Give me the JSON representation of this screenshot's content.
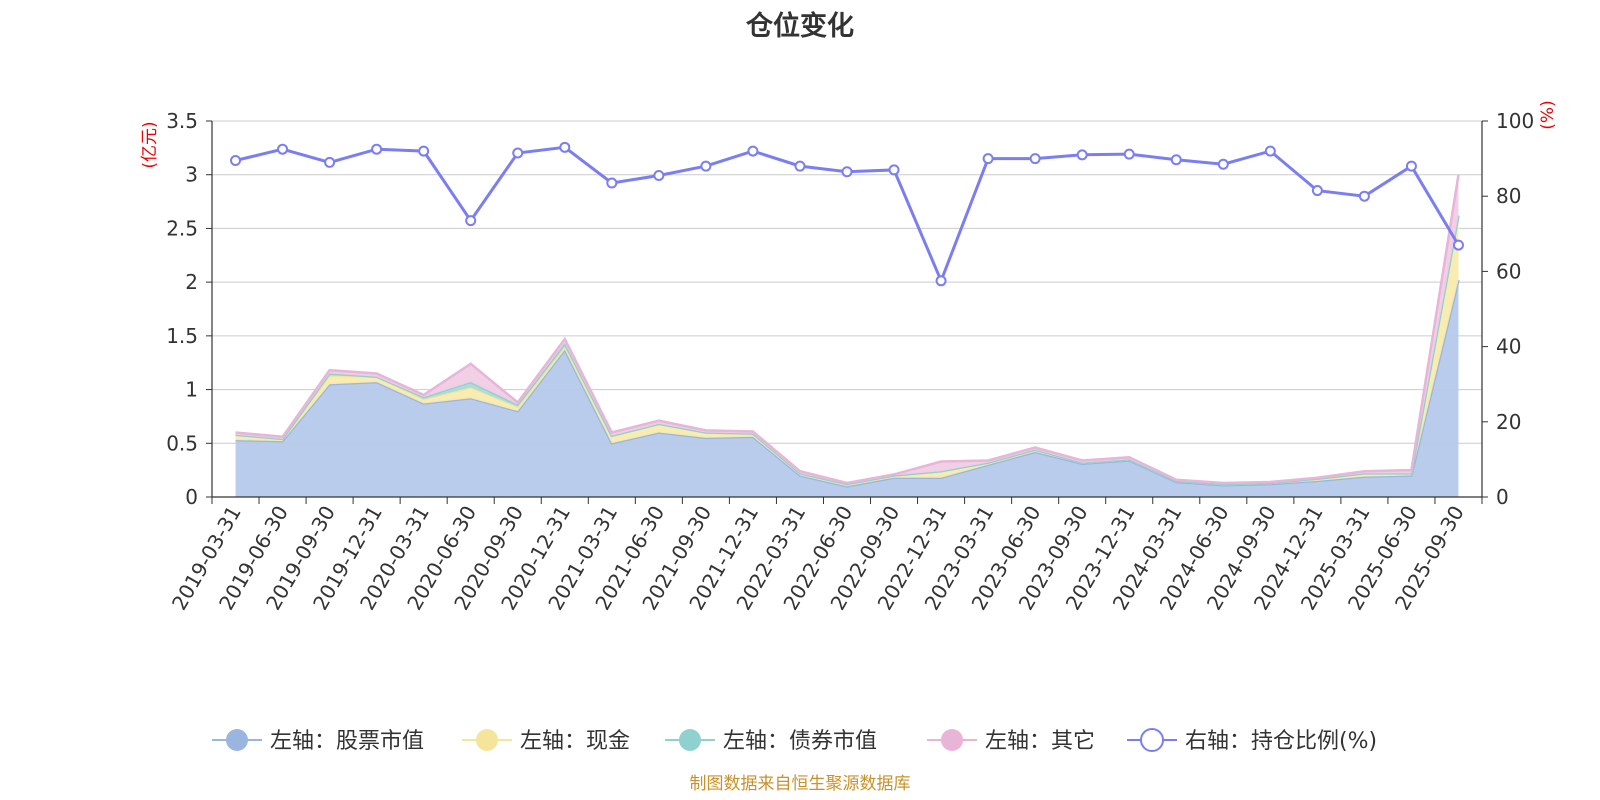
{
  "chart_data": {
    "type": "area",
    "title": "仓位变化",
    "y_left_unit": "(亿元)",
    "y_right_unit": "(%)",
    "y_left_range": [
      0,
      3.5
    ],
    "y_left_ticks": [
      "0",
      "0.5",
      "1",
      "1.5",
      "2",
      "2.5",
      "3",
      "3.5"
    ],
    "y_right_range": [
      0,
      100
    ],
    "y_right_ticks": [
      "0",
      "20",
      "40",
      "60",
      "80",
      "100"
    ],
    "grid": true,
    "legend_position": "bottom",
    "categories": [
      "2019-03-31",
      "2019-06-30",
      "2019-09-30",
      "2019-12-31",
      "2020-03-31",
      "2020-06-30",
      "2020-09-30",
      "2020-12-31",
      "2021-03-31",
      "2021-06-30",
      "2021-09-30",
      "2021-12-31",
      "2022-03-31",
      "2022-06-30",
      "2022-09-30",
      "2022-12-31",
      "2023-03-31",
      "2023-06-30",
      "2023-09-30",
      "2023-12-31",
      "2024-03-31",
      "2024-06-30",
      "2024-09-30",
      "2024-12-31",
      "2025-03-31",
      "2025-06-30",
      "2025-09-30"
    ],
    "series": [
      {
        "name": "左轴：股票市值",
        "axis": "left",
        "stacked": true,
        "color": "#9ab5e0",
        "fill": "#b5c9ea",
        "values": [
          0.53,
          0.52,
          1.05,
          1.07,
          0.87,
          0.92,
          0.8,
          1.37,
          0.5,
          0.6,
          0.55,
          0.56,
          0.2,
          0.1,
          0.18,
          0.18,
          0.3,
          0.42,
          0.31,
          0.34,
          0.14,
          0.11,
          0.12,
          0.15,
          0.19,
          0.2,
          2.02
        ]
      },
      {
        "name": "左轴：现金",
        "axis": "left",
        "stacked": true,
        "color": "#f5e59a",
        "fill": "#f9ebad",
        "values": [
          0.05,
          0.02,
          0.08,
          0.05,
          0.04,
          0.1,
          0.04,
          0.03,
          0.07,
          0.08,
          0.05,
          0.03,
          0.02,
          0.02,
          0.02,
          0.06,
          0.02,
          0.02,
          0.01,
          0.01,
          0.01,
          0.01,
          0.01,
          0.02,
          0.03,
          0.02,
          0.6
        ]
      },
      {
        "name": "左轴：债券市值",
        "axis": "left",
        "stacked": true,
        "color": "#8fd1cf",
        "fill": "#a6dbd9",
        "values": [
          0,
          0,
          0.02,
          0,
          0.02,
          0.05,
          0.02,
          0.03,
          0,
          0,
          0,
          0,
          0,
          0,
          0,
          0,
          0,
          0,
          0,
          0,
          0,
          0,
          0,
          0,
          0,
          0,
          0
        ]
      },
      {
        "name": "左轴：其它",
        "axis": "left",
        "stacked": true,
        "color": "#e8b4d8",
        "fill": "#f0cde5",
        "values": [
          0.02,
          0.02,
          0.03,
          0.03,
          0.02,
          0.17,
          0.02,
          0.04,
          0.03,
          0.03,
          0.02,
          0.02,
          0.02,
          0.01,
          0.01,
          0.09,
          0.02,
          0.02,
          0.02,
          0.02,
          0.01,
          0.01,
          0.01,
          0.01,
          0.02,
          0.03,
          0.38
        ]
      },
      {
        "name": "右轴：持仓比例(%)",
        "axis": "right",
        "type": "line",
        "color": "#7b7ef0",
        "values": [
          89.5,
          92.5,
          89,
          92.5,
          92,
          73.5,
          91.5,
          93,
          83.5,
          85.5,
          88,
          92,
          88,
          86.5,
          87,
          57.5,
          90,
          90,
          91,
          91.2,
          89.7,
          88.5,
          92,
          81.5,
          80,
          88,
          67
        ]
      }
    ]
  },
  "source": "制图数据来自恒生聚源数据库"
}
